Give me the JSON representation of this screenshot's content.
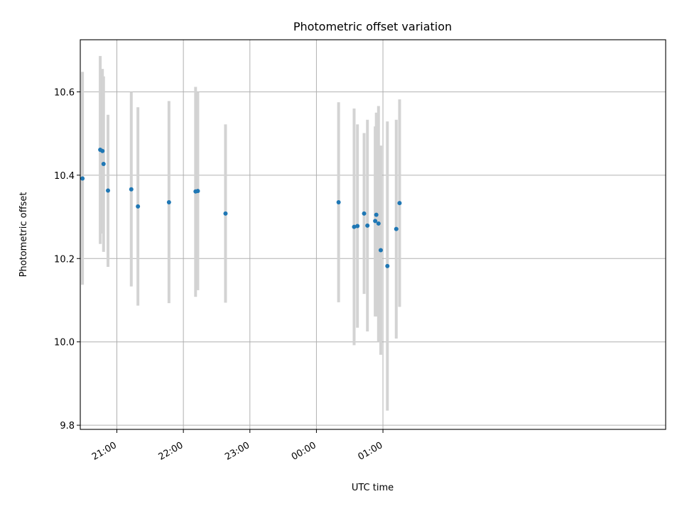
{
  "chart_data": {
    "type": "scatter",
    "title": "Photometric offset variation",
    "xlabel": "UTC time",
    "ylabel": "Photometric offset",
    "x_base_date": "",
    "xlim_minutes": [
      1227,
      1755
    ],
    "x_ticks": [
      {
        "minutes": 1260,
        "label": "21:00"
      },
      {
        "minutes": 1320,
        "label": "22:00"
      },
      {
        "minutes": 1380,
        "label": "23:00"
      },
      {
        "minutes": 1440,
        "label": "00:00"
      },
      {
        "minutes": 1500,
        "label": "01:00"
      }
    ],
    "ylim": [
      9.79,
      10.725
    ],
    "y_ticks": [
      {
        "value": 9.8,
        "label": "9.8"
      },
      {
        "value": 10.0,
        "label": "10.0"
      },
      {
        "value": 10.2,
        "label": "10.2"
      },
      {
        "value": 10.4,
        "label": "10.4"
      },
      {
        "value": 10.6,
        "label": "10.6"
      }
    ],
    "grid": true,
    "point_color": "#1f77b4",
    "errorbar_color": "#d3d3d3",
    "points": [
      {
        "time": "20:29",
        "y": 10.392,
        "lo": 10.137,
        "hi": 10.648
      },
      {
        "time": "20:45",
        "y": 10.461,
        "lo": 10.235,
        "hi": 10.686
      },
      {
        "time": "20:47",
        "y": 10.458,
        "lo": 10.26,
        "hi": 10.655
      },
      {
        "time": "20:48",
        "y": 10.427,
        "lo": 10.216,
        "hi": 10.637
      },
      {
        "time": "20:52",
        "y": 10.363,
        "lo": 10.18,
        "hi": 10.545
      },
      {
        "time": "21:13",
        "y": 10.366,
        "lo": 10.133,
        "hi": 10.6
      },
      {
        "time": "21:19",
        "y": 10.325,
        "lo": 10.087,
        "hi": 10.563
      },
      {
        "time": "21:47",
        "y": 10.335,
        "lo": 10.093,
        "hi": 10.578
      },
      {
        "time": "22:11",
        "y": 10.361,
        "lo": 10.108,
        "hi": 10.612
      },
      {
        "time": "22:13",
        "y": 10.362,
        "lo": 10.124,
        "hi": 10.6
      },
      {
        "time": "22:38",
        "y": 10.308,
        "lo": 10.094,
        "hi": 10.522
      },
      {
        "time": "00:20",
        "y": 10.335,
        "lo": 10.095,
        "hi": 10.575
      },
      {
        "time": "00:34",
        "y": 10.276,
        "lo": 9.992,
        "hi": 10.56
      },
      {
        "time": "00:37",
        "y": 10.278,
        "lo": 10.034,
        "hi": 10.522
      },
      {
        "time": "00:43",
        "y": 10.308,
        "lo": 10.115,
        "hi": 10.501
      },
      {
        "time": "00:46",
        "y": 10.279,
        "lo": 10.025,
        "hi": 10.533
      },
      {
        "time": "00:53",
        "y": 10.29,
        "lo": 10.061,
        "hi": 10.517
      },
      {
        "time": "00:54",
        "y": 10.305,
        "lo": 10.061,
        "hi": 10.55
      },
      {
        "time": "00:56",
        "y": 10.284,
        "lo": 10.0,
        "hi": 10.566
      },
      {
        "time": "00:58",
        "y": 10.22,
        "lo": 9.969,
        "hi": 10.471
      },
      {
        "time": "01:04",
        "y": 10.182,
        "lo": 9.835,
        "hi": 10.529
      },
      {
        "time": "01:12",
        "y": 10.271,
        "lo": 10.008,
        "hi": 10.533
      },
      {
        "time": "01:15",
        "y": 10.333,
        "lo": 10.084,
        "hi": 10.582
      }
    ]
  }
}
